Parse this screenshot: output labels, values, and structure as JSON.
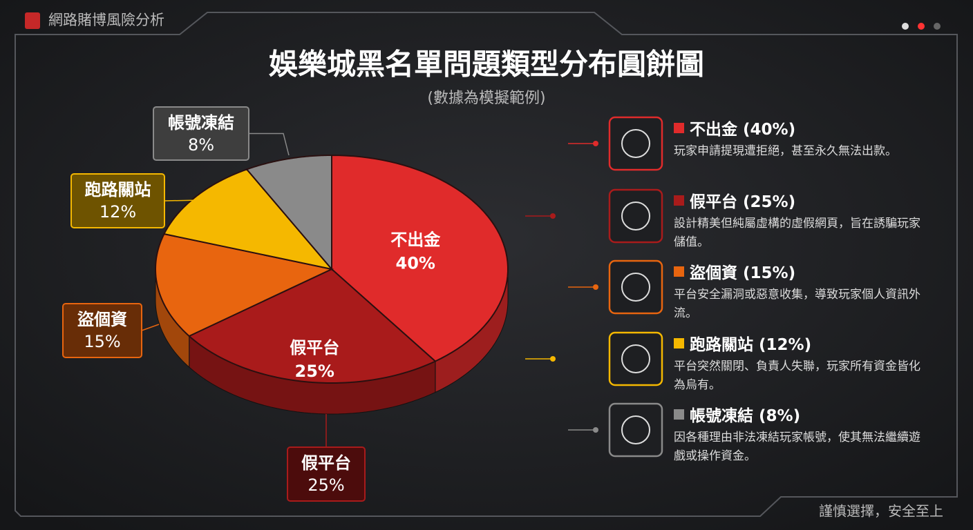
{
  "header": {
    "brand": "網路賭博風險分析",
    "footer": "謹慎選擇，安全至上"
  },
  "chart_data": {
    "type": "pie",
    "title": "娛樂城黑名單問題類型分布圓餅圖",
    "subtitle": "(數據為模擬範例)",
    "categories": [
      "不出金",
      "假平台",
      "盜個資",
      "跑路關站",
      "帳號凍結"
    ],
    "values": [
      40,
      25,
      15,
      12,
      8
    ],
    "value_labels": [
      "40%",
      "25%",
      "15%",
      "12%",
      "8%"
    ],
    "colors": [
      "#e02b2b",
      "#a91b1b",
      "#e8650f",
      "#f5b800",
      "#8a8a8a"
    ],
    "legend_labels": [
      "不出金 (40%)",
      "假平台 (25%)",
      "盜個資 (15%)",
      "跑路關站 (12%)",
      "帳號凍結 (8%)"
    ],
    "descriptions": [
      "玩家申請提現遭拒絕，甚至永久無法出款。",
      "設計精美但純屬虛構的虛假網頁，旨在誘騙玩家儲值。",
      "平台安全漏洞或惡意收集，導致玩家個人資訊外流。",
      "平台突然關閉、負責人失聯，玩家所有資金皆化為烏有。",
      "因各種理由非法凍結玩家帳號，使其無法繼續遊戲或操作資金。"
    ]
  }
}
